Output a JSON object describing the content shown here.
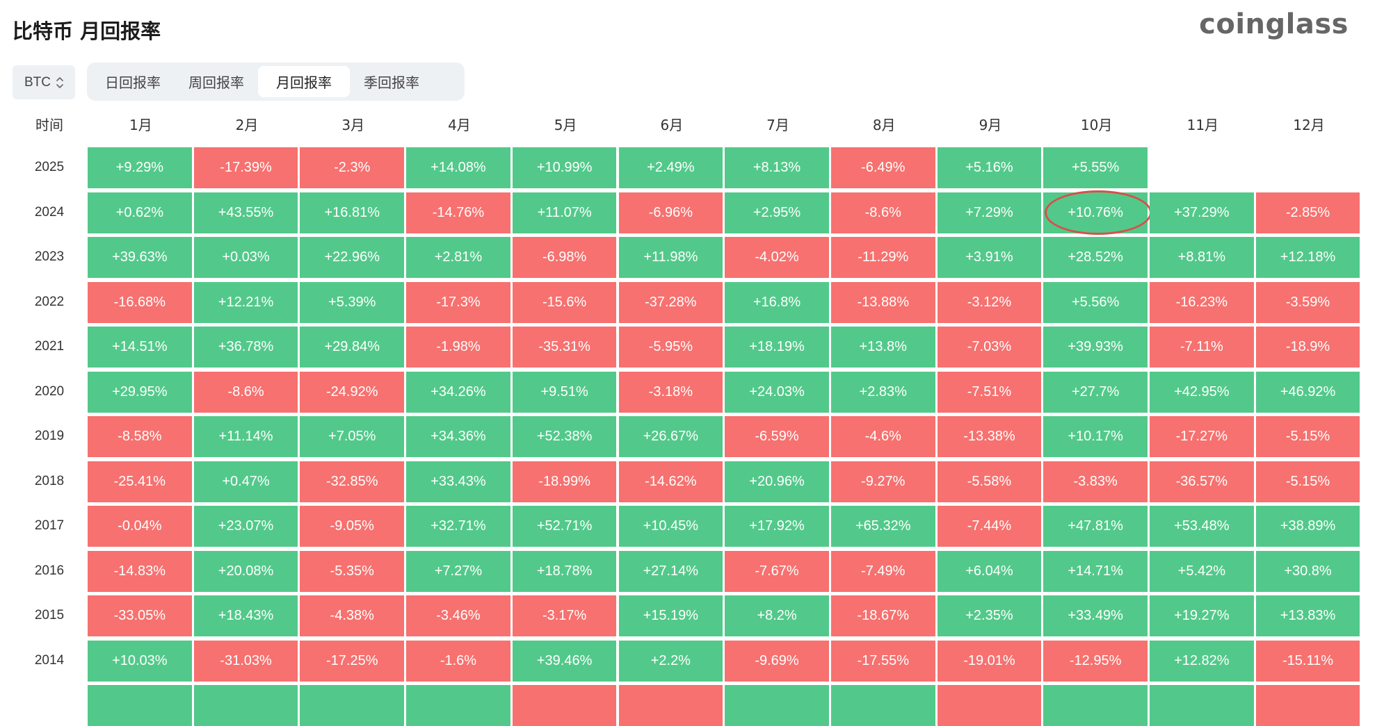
{
  "title": "比特币 月回报率",
  "logo": "coinglass",
  "asset_select": {
    "value": "BTC",
    "icon": "chevron-up-down-icon"
  },
  "tabs": [
    {
      "label": "日回报率",
      "active": false
    },
    {
      "label": "周回报率",
      "active": false
    },
    {
      "label": "月回报率",
      "active": true
    },
    {
      "label": "季回报率",
      "active": false
    }
  ],
  "colors": {
    "positive": "#52c98a",
    "negative": "#f6716f",
    "highlight_ring": "#d8504a"
  },
  "table": {
    "time_header": "时间",
    "months": [
      "1月",
      "2月",
      "3月",
      "4月",
      "5月",
      "6月",
      "7月",
      "8月",
      "9月",
      "10月",
      "11月",
      "12月"
    ],
    "rows": [
      {
        "year": "2025",
        "values": [
          "+9.29%",
          "-17.39%",
          "-2.3%",
          "+14.08%",
          "+10.99%",
          "+2.49%",
          "+8.13%",
          "-6.49%",
          "+5.16%",
          "+5.55%",
          null,
          null
        ]
      },
      {
        "year": "2024",
        "values": [
          "+0.62%",
          "+43.55%",
          "+16.81%",
          "-14.76%",
          "+11.07%",
          "-6.96%",
          "+2.95%",
          "-8.6%",
          "+7.29%",
          "+10.76%",
          "+37.29%",
          "-2.85%"
        ]
      },
      {
        "year": "2023",
        "values": [
          "+39.63%",
          "+0.03%",
          "+22.96%",
          "+2.81%",
          "-6.98%",
          "+11.98%",
          "-4.02%",
          "-11.29%",
          "+3.91%",
          "+28.52%",
          "+8.81%",
          "+12.18%"
        ]
      },
      {
        "year": "2022",
        "values": [
          "-16.68%",
          "+12.21%",
          "+5.39%",
          "-17.3%",
          "-15.6%",
          "-37.28%",
          "+16.8%",
          "-13.88%",
          "-3.12%",
          "+5.56%",
          "-16.23%",
          "-3.59%"
        ]
      },
      {
        "year": "2021",
        "values": [
          "+14.51%",
          "+36.78%",
          "+29.84%",
          "-1.98%",
          "-35.31%",
          "-5.95%",
          "+18.19%",
          "+13.8%",
          "-7.03%",
          "+39.93%",
          "-7.11%",
          "-18.9%"
        ]
      },
      {
        "year": "2020",
        "values": [
          "+29.95%",
          "-8.6%",
          "-24.92%",
          "+34.26%",
          "+9.51%",
          "-3.18%",
          "+24.03%",
          "+2.83%",
          "-7.51%",
          "+27.7%",
          "+42.95%",
          "+46.92%"
        ]
      },
      {
        "year": "2019",
        "values": [
          "-8.58%",
          "+11.14%",
          "+7.05%",
          "+34.36%",
          "+52.38%",
          "+26.67%",
          "-6.59%",
          "-4.6%",
          "-13.38%",
          "+10.17%",
          "-17.27%",
          "-5.15%"
        ]
      },
      {
        "year": "2018",
        "values": [
          "-25.41%",
          "+0.47%",
          "-32.85%",
          "+33.43%",
          "-18.99%",
          "-14.62%",
          "+20.96%",
          "-9.27%",
          "-5.58%",
          "-3.83%",
          "-36.57%",
          "-5.15%"
        ]
      },
      {
        "year": "2017",
        "values": [
          "-0.04%",
          "+23.07%",
          "-9.05%",
          "+32.71%",
          "+52.71%",
          "+10.45%",
          "+17.92%",
          "+65.32%",
          "-7.44%",
          "+47.81%",
          "+53.48%",
          "+38.89%"
        ]
      },
      {
        "year": "2016",
        "values": [
          "-14.83%",
          "+20.08%",
          "-5.35%",
          "+7.27%",
          "+18.78%",
          "+27.14%",
          "-7.67%",
          "-7.49%",
          "+6.04%",
          "+14.71%",
          "+5.42%",
          "+30.8%"
        ]
      },
      {
        "year": "2015",
        "values": [
          "-33.05%",
          "+18.43%",
          "-4.38%",
          "-3.46%",
          "-3.17%",
          "+15.19%",
          "+8.2%",
          "-18.67%",
          "+2.35%",
          "+33.49%",
          "+19.27%",
          "+13.83%"
        ]
      },
      {
        "year": "2014",
        "values": [
          "+10.03%",
          "-31.03%",
          "-17.25%",
          "-1.6%",
          "+39.46%",
          "+2.2%",
          "-9.69%",
          "-17.55%",
          "-19.01%",
          "-12.95%",
          "+12.82%",
          "-15.11%"
        ]
      }
    ],
    "partial_row_signs": [
      "up",
      "up",
      "up",
      "up",
      "down",
      "down",
      "up",
      "up",
      "down",
      "up",
      "up",
      "down"
    ],
    "highlighted_cell": {
      "year": "2024",
      "month": "10月"
    }
  }
}
